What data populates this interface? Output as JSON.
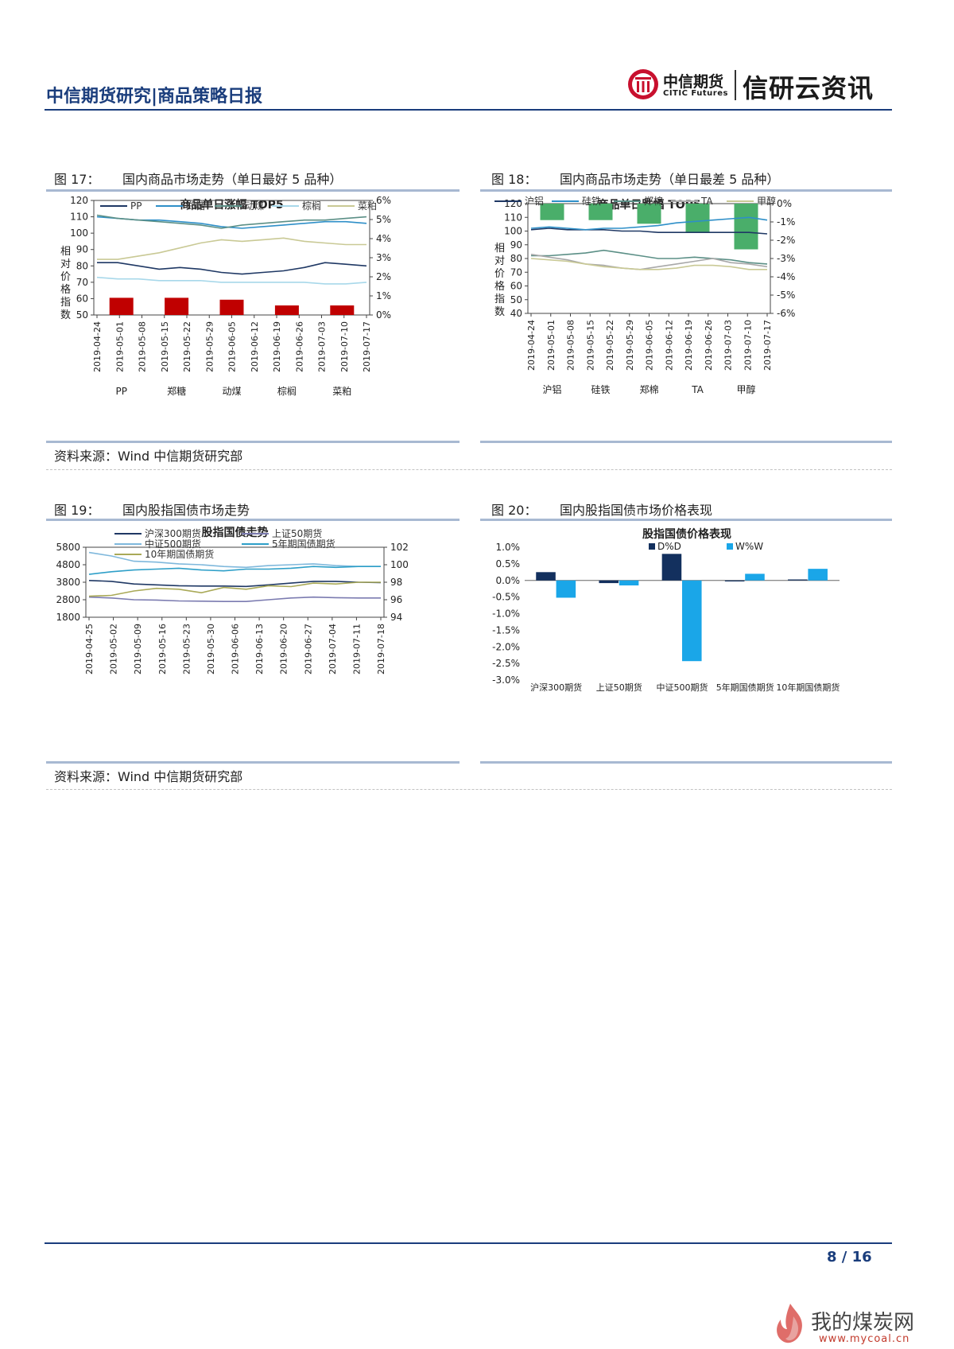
{
  "header": {
    "report_title": "中信期货研究|商品策略日报",
    "logo_cn": "中信期货",
    "logo_en": "CITIC Futures",
    "slogan": "信研云资讯"
  },
  "fig17": {
    "label": "图 17：",
    "title": "国内商品市场走势（单日最好 5 品种）",
    "chart_data": {
      "type": "line",
      "title": "商品单日涨幅 TOP5",
      "ylabel": "相对价格指数",
      "ylim": [
        50,
        120
      ],
      "y_ticks": [
        "120",
        "110",
        "100",
        "90",
        "80",
        "70",
        "60",
        "50"
      ],
      "y2lim": [
        0,
        6
      ],
      "y2_ticks": [
        "6%",
        "5%",
        "4%",
        "3%",
        "2%",
        "1%",
        "0%"
      ],
      "x_ticks": [
        "2019-04-24",
        "2019-05-01",
        "2019-05-08",
        "2019-05-15",
        "2019-05-22",
        "2019-05-29",
        "2019-06-05",
        "2019-06-12",
        "2019-06-19",
        "2019-06-26",
        "2019-07-03",
        "2019-07-10",
        "2019-07-17"
      ],
      "series": [
        {
          "name": "PP",
          "color": "#1f3864",
          "values": [
            82,
            82,
            80,
            78,
            79,
            78,
            76,
            75,
            76,
            77,
            79,
            82,
            81,
            80
          ]
        },
        {
          "name": "郑糖",
          "color": "#2e8fc8",
          "values": [
            110,
            109,
            108,
            108,
            107,
            106,
            104,
            103,
            104,
            105,
            106,
            107,
            107,
            106
          ]
        },
        {
          "name": "动煤",
          "color": "#5b8f86",
          "values": [
            111,
            109,
            108,
            107,
            106,
            105,
            103,
            105,
            106,
            107,
            108,
            108,
            109,
            110
          ]
        },
        {
          "name": "棕榈",
          "color": "#a8d8ea",
          "values": [
            73,
            72,
            72,
            71,
            71,
            71,
            70,
            70,
            70,
            70,
            70,
            69,
            69,
            70
          ]
        },
        {
          "name": "菜粕",
          "color": "#c9c995",
          "values": [
            84,
            84,
            86,
            88,
            91,
            94,
            96,
            95,
            96,
            97,
            95,
            94,
            93,
            93
          ]
        }
      ],
      "bars": {
        "categories": [
          "PP",
          "郑糖",
          "动煤",
          "棕榈",
          "菜粕"
        ],
        "values": [
          0.9,
          0.9,
          0.8,
          0.5,
          0.5
        ],
        "color": "#c00000"
      },
      "legend": [
        "PP",
        "郑糖",
        "动煤",
        "棕榈",
        "菜粕"
      ]
    }
  },
  "fig18": {
    "label": "图 18：",
    "title": "国内商品市场走势（单日最差 5 品种）",
    "chart_data": {
      "type": "line",
      "title": "商品单日跌幅 TOP5",
      "ylabel": "相对价格指数",
      "ylim": [
        40,
        120
      ],
      "y_ticks": [
        "120",
        "110",
        "100",
        "90",
        "80",
        "70",
        "60",
        "50",
        "40"
      ],
      "y2lim": [
        -6,
        0
      ],
      "y2_ticks": [
        "0%",
        "-1%",
        "-2%",
        "-3%",
        "-4%",
        "-5%",
        "-6%"
      ],
      "x_ticks": [
        "2019-04-24",
        "2019-05-01",
        "2019-05-08",
        "2019-05-15",
        "2019-05-22",
        "2019-05-29",
        "2019-06-05",
        "2019-06-12",
        "2019-06-19",
        "2019-06-26",
        "2019-07-03",
        "2019-07-10",
        "2019-07-17"
      ],
      "series": [
        {
          "name": "沪铝",
          "color": "#1f3864",
          "values": [
            101,
            102,
            101,
            101,
            101,
            100,
            100,
            99,
            99,
            99,
            99,
            99,
            99,
            98
          ]
        },
        {
          "name": "硅铁",
          "color": "#2e8fc8",
          "values": [
            102,
            103,
            102,
            101,
            102,
            102,
            103,
            104,
            106,
            107,
            108,
            109,
            110,
            108
          ]
        },
        {
          "name": "郑棉",
          "color": "#5b8f86",
          "values": [
            82,
            82,
            83,
            84,
            86,
            84,
            82,
            80,
            80,
            81,
            80,
            79,
            77,
            76
          ]
        },
        {
          "name": "TA",
          "color": "#a8a8a8",
          "values": [
            83,
            81,
            79,
            76,
            75,
            73,
            72,
            74,
            76,
            78,
            80,
            77,
            76,
            74
          ]
        },
        {
          "name": "甲醇",
          "color": "#c9c995",
          "values": [
            80,
            79,
            78,
            76,
            74,
            73,
            72,
            72,
            73,
            75,
            75,
            74,
            72,
            72
          ]
        }
      ],
      "bars": {
        "categories": [
          "沪铝",
          "硅铁",
          "郑棉",
          "TA",
          "甲醇"
        ],
        "values": [
          -0.9,
          -0.9,
          -1.1,
          -1.6,
          -2.5
        ],
        "color": "#4aae6a"
      },
      "legend": [
        "沪铝",
        "硅铁",
        "郑棉",
        "TA",
        "甲醇"
      ]
    }
  },
  "source1": "资料来源：Wind 中信期货研究部",
  "fig19": {
    "label": "图 19：",
    "title": "国内股指国债市场走势",
    "chart_data": {
      "type": "line",
      "title": "股指国债走势",
      "ylim": [
        1800,
        5800
      ],
      "y_ticks": [
        "5800",
        "4800",
        "3800",
        "2800",
        "1800"
      ],
      "y2lim": [
        94,
        102
      ],
      "y2_ticks": [
        "102",
        "100",
        "98",
        "96",
        "94"
      ],
      "x_ticks": [
        "2019-04-25",
        "2019-05-02",
        "2019-05-09",
        "2019-05-16",
        "2019-05-23",
        "2019-05-30",
        "2019-06-06",
        "2019-06-13",
        "2019-06-20",
        "2019-06-27",
        "2019-07-04",
        "2019-07-11",
        "2019-07-18"
      ],
      "series": [
        {
          "name": "沪深300期货",
          "axis": "left",
          "color": "#1f3864",
          "values": [
            3900,
            3850,
            3700,
            3650,
            3600,
            3580,
            3580,
            3560,
            3650,
            3750,
            3850,
            3850,
            3800,
            3780
          ]
        },
        {
          "name": "上证50期货",
          "axis": "left",
          "color": "#7b7bb0",
          "values": [
            2950,
            2900,
            2800,
            2780,
            2730,
            2720,
            2700,
            2700,
            2800,
            2900,
            2950,
            2920,
            2900,
            2900
          ]
        },
        {
          "name": "中证500期货",
          "axis": "left",
          "color": "#7fb8dc",
          "values": [
            5500,
            5300,
            5000,
            4950,
            4850,
            4800,
            4700,
            4650,
            4750,
            4800,
            4850,
            4750,
            4700,
            4700
          ]
        },
        {
          "name": "5年期国债期货",
          "axis": "right",
          "color": "#2e9fc8",
          "values": [
            98.9,
            99.2,
            99.4,
            99.5,
            99.6,
            99.4,
            99.3,
            99.5,
            99.5,
            99.6,
            99.8,
            99.7,
            99.8,
            99.8
          ]
        },
        {
          "name": "10年期国债期货",
          "axis": "right",
          "color": "#a9a957",
          "values": [
            96.4,
            96.5,
            97.0,
            97.3,
            97.2,
            96.8,
            97.4,
            97.2,
            97.6,
            97.5,
            97.9,
            97.8,
            98.0,
            98.0
          ]
        }
      ],
      "legend": [
        "沪深300期货",
        "上证50期货",
        "中证500期货",
        "5年期国债期货",
        "10年期国债期货"
      ]
    }
  },
  "fig20": {
    "label": "图 20：",
    "title": "国内股指国债市场价格表现",
    "chart_data": {
      "type": "bar",
      "title": "股指国债价格表现",
      "ylim": [
        -3.0,
        1.0
      ],
      "y_ticks": [
        "1.0%",
        "0.5%",
        "0.0%",
        "-0.5%",
        "-1.0%",
        "-1.5%",
        "-2.0%",
        "-2.5%",
        "-3.0%"
      ],
      "categories": [
        "沪深300期货",
        "上证50期货",
        "中证500期货",
        "5年期国债期货",
        "10年期国债期货"
      ],
      "series": [
        {
          "name": "D%D",
          "color": "#13305e",
          "values": [
            0.25,
            -0.08,
            0.8,
            -0.03,
            0.03
          ]
        },
        {
          "name": "W%W",
          "color": "#1aa6e8",
          "values": [
            -0.52,
            -0.15,
            -2.43,
            0.2,
            0.35
          ]
        }
      ],
      "legend": [
        "D%D",
        "W%W"
      ]
    }
  },
  "source2": "资料来源：Wind 中信期货研究部",
  "footer": {
    "page": "8 / 16",
    "watermark": "我的煤炭网",
    "watermark_url": "www.mycoal.cn"
  }
}
